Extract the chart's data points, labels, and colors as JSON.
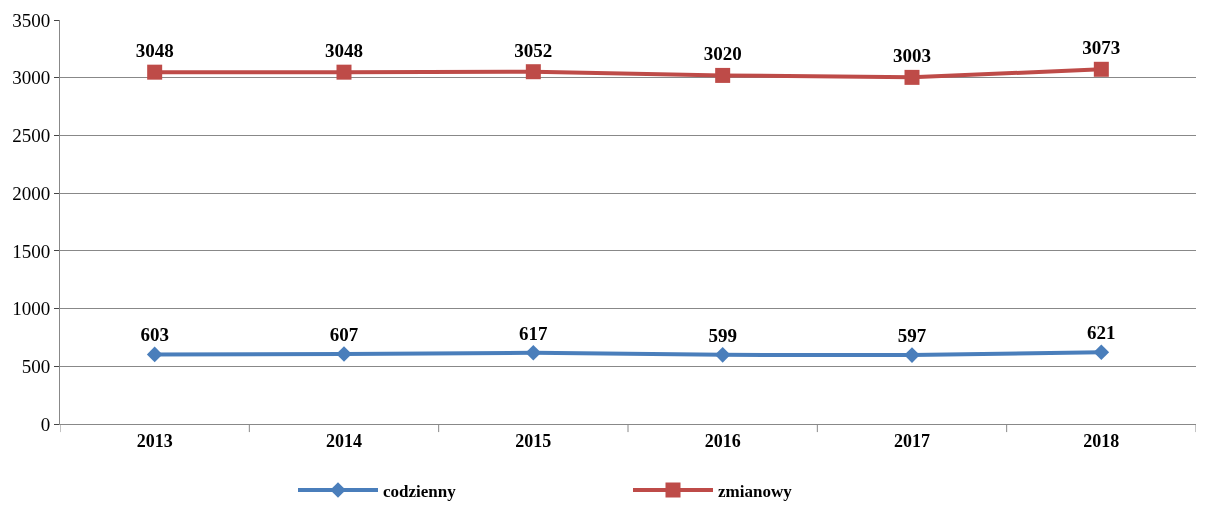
{
  "chart_data": {
    "type": "line",
    "categories": [
      "2013",
      "2014",
      "2015",
      "2016",
      "2017",
      "2018"
    ],
    "series": [
      {
        "name": "codzienny",
        "color": "#4a7ebb",
        "marker": "diamond",
        "values": [
          603,
          607,
          617,
          599,
          597,
          621
        ]
      },
      {
        "name": "zmianowy",
        "color": "#be4b48",
        "marker": "square",
        "values": [
          3048,
          3048,
          3052,
          3020,
          3003,
          3073
        ]
      }
    ],
    "ylim": [
      0,
      3500
    ],
    "yticks": [
      0,
      500,
      1000,
      1500,
      2000,
      2500,
      3000,
      3500
    ],
    "grid": "y",
    "legend": "bottom",
    "data_labels": true,
    "line_style": "solid"
  }
}
